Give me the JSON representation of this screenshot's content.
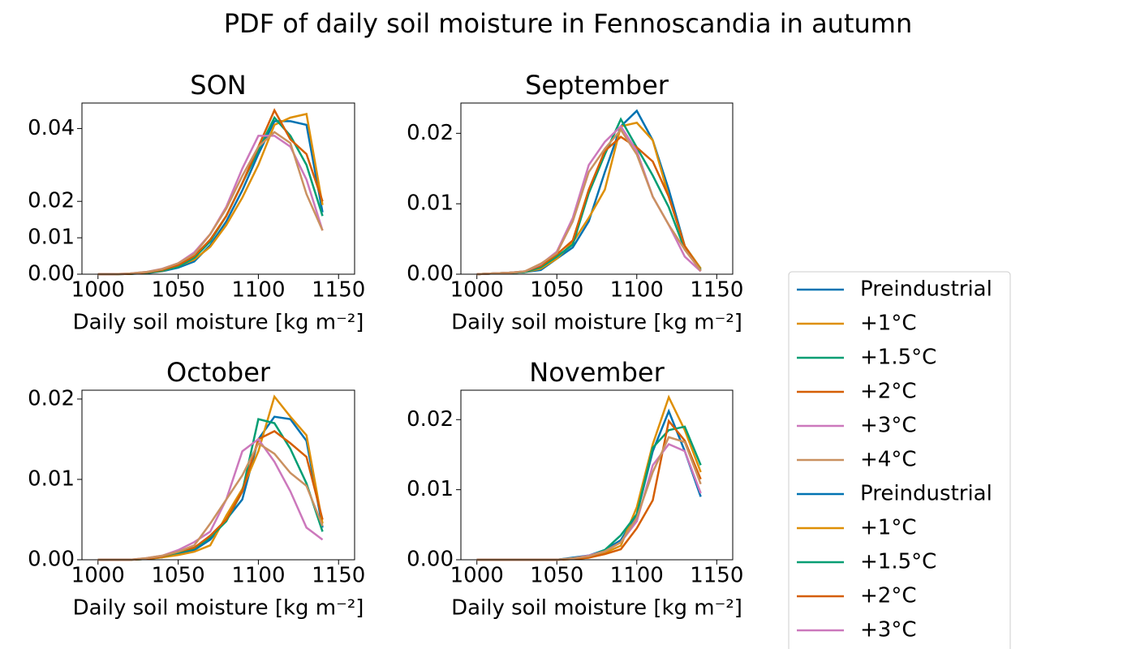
{
  "chart_data": {
    "type": "line",
    "title": "PDF of daily soil moisture in Fennoscandia in autumn",
    "legend": "right",
    "subplots": [
      {
        "title": "SON",
        "xlabel": "Daily soil moisture [kg m⁻²]",
        "x": [
          1000,
          1010,
          1020,
          1030,
          1040,
          1050,
          1060,
          1070,
          1080,
          1090,
          1100,
          1110,
          1120,
          1130,
          1140
        ],
        "xlim": [
          990,
          1160
        ],
        "xticks": [
          1000,
          1050,
          1100,
          1150
        ],
        "ylim": [
          0,
          0.047
        ],
        "yticks": [
          {
            "value": 0,
            "label": "0.00"
          },
          {
            "value": 0.01,
            "label": "0.01"
          },
          {
            "value": 0.02,
            "label": "0.02"
          },
          {
            "value": 0.04,
            "label": "0.04"
          }
        ],
        "series": [
          {
            "name": "Preindustrial",
            "color": "#0173b2",
            "values": [
              0,
              0,
              0.0001,
              0.0003,
              0.0008,
              0.0018,
              0.0035,
              0.008,
              0.0145,
              0.023,
              0.033,
              0.042,
              0.042,
              0.041,
              0.017
            ]
          },
          {
            "name": "+1°C",
            "color": "#de8f05",
            "values": [
              0,
              0,
              0.0001,
              0.0004,
              0.0009,
              0.0022,
              0.004,
              0.0075,
              0.0135,
              0.021,
              0.03,
              0.041,
              0.043,
              0.044,
              0.019
            ]
          },
          {
            "name": "+1.5°C",
            "color": "#029e73",
            "values": [
              0,
              0,
              0.0001,
              0.0004,
              0.001,
              0.002,
              0.0045,
              0.009,
              0.016,
              0.025,
              0.034,
              0.043,
              0.038,
              0.03,
              0.016
            ]
          },
          {
            "name": "+2°C",
            "color": "#d55e00",
            "values": [
              0,
              0,
              0.0001,
              0.0005,
              0.0012,
              0.0025,
              0.005,
              0.0095,
              0.016,
              0.025,
              0.035,
              0.045,
              0.037,
              0.033,
              0.02
            ]
          },
          {
            "name": "+3°C",
            "color": "#cc78bc",
            "values": [
              0,
              0,
              0.0002,
              0.0006,
              0.0015,
              0.003,
              0.006,
              0.011,
              0.0185,
              0.029,
              0.038,
              0.038,
              0.035,
              0.026,
              0.012
            ]
          },
          {
            "name": "+4°C",
            "color": "#ca9161",
            "values": [
              0,
              0,
              0.0002,
              0.0006,
              0.0014,
              0.003,
              0.0055,
              0.011,
              0.018,
              0.027,
              0.035,
              0.039,
              0.036,
              0.022,
              0.012
            ]
          }
        ]
      },
      {
        "title": "September",
        "xlabel": "Daily soil moisture [kg m⁻²]",
        "x": [
          1000,
          1010,
          1020,
          1030,
          1040,
          1050,
          1060,
          1070,
          1080,
          1090,
          1100,
          1110,
          1120,
          1130,
          1140
        ],
        "xlim": [
          990,
          1160
        ],
        "xticks": [
          1000,
          1050,
          1100,
          1150
        ],
        "ylim": [
          0,
          0.0243
        ],
        "yticks": [
          {
            "value": 0,
            "label": "0.00"
          },
          {
            "value": 0.01,
            "label": "0.01"
          },
          {
            "value": 0.02,
            "label": "0.02"
          }
        ],
        "series": [
          {
            "name": "Preindustrial",
            "color": "#0173b2",
            "values": [
              0,
              0.0001,
              0.0002,
              0.0003,
              0.0006,
              0.0022,
              0.0038,
              0.0075,
              0.0145,
              0.021,
              0.0232,
              0.019,
              0.012,
              0.004,
              0.0008
            ]
          },
          {
            "name": "+1°C",
            "color": "#de8f05",
            "values": [
              0,
              0.0001,
              0.0002,
              0.0003,
              0.0008,
              0.0022,
              0.0045,
              0.008,
              0.012,
              0.021,
              0.0215,
              0.019,
              0.011,
              0.004,
              0.0008
            ]
          },
          {
            "name": "+1.5°C",
            "color": "#029e73",
            "values": [
              0,
              0.0001,
              0.0002,
              0.0003,
              0.001,
              0.0025,
              0.0042,
              0.0115,
              0.017,
              0.022,
              0.018,
              0.014,
              0.0095,
              0.0035,
              0.0006
            ]
          },
          {
            "name": "+2°C",
            "color": "#d55e00",
            "values": [
              0,
              0.0001,
              0.0002,
              0.0004,
              0.0012,
              0.0028,
              0.0048,
              0.012,
              0.0175,
              0.0195,
              0.018,
              0.016,
              0.011,
              0.004,
              0.0005
            ]
          },
          {
            "name": "+3°C",
            "color": "#cc78bc",
            "values": [
              0,
              0.0001,
              0.0002,
              0.0004,
              0.0014,
              0.0032,
              0.008,
              0.0155,
              0.0188,
              0.021,
              0.0175,
              0.011,
              0.007,
              0.0025,
              0.0004
            ]
          },
          {
            "name": "+4°C",
            "color": "#ca9161",
            "values": [
              0,
              0.0001,
              0.0002,
              0.0004,
              0.0015,
              0.003,
              0.0075,
              0.0145,
              0.0178,
              0.0205,
              0.017,
              0.011,
              0.007,
              0.0035,
              0.0005
            ]
          }
        ]
      },
      {
        "title": "October",
        "xlabel": "Daily soil moisture [kg m⁻²]",
        "x": [
          1000,
          1010,
          1020,
          1030,
          1040,
          1050,
          1060,
          1070,
          1080,
          1090,
          1100,
          1110,
          1120,
          1130,
          1140
        ],
        "xlim": [
          990,
          1160
        ],
        "xticks": [
          1000,
          1050,
          1100,
          1150
        ],
        "ylim": [
          0,
          0.0211
        ],
        "yticks": [
          {
            "value": 0,
            "label": "0.00"
          },
          {
            "value": 0.01,
            "label": "0.01"
          },
          {
            "value": 0.02,
            "label": "0.02"
          }
        ],
        "series": [
          {
            "name": "Preindustrial",
            "color": "#0173b2",
            "values": [
              0,
              0,
              0,
              0.0001,
              0.0003,
              0.0008,
              0.0012,
              0.0025,
              0.005,
              0.0075,
              0.015,
              0.0178,
              0.0175,
              0.0148,
              0.004
            ]
          },
          {
            "name": "+1°C",
            "color": "#de8f05",
            "values": [
              0,
              0,
              0,
              0.0001,
              0.0003,
              0.0006,
              0.001,
              0.0018,
              0.0055,
              0.0088,
              0.0135,
              0.0203,
              0.0178,
              0.0155,
              0.0045
            ]
          },
          {
            "name": "+1.5°C",
            "color": "#029e73",
            "values": [
              0,
              0,
              0,
              0.0001,
              0.0004,
              0.0009,
              0.0014,
              0.0028,
              0.0048,
              0.0085,
              0.0175,
              0.017,
              0.0138,
              0.0095,
              0.0035
            ]
          },
          {
            "name": "+2°C",
            "color": "#d55e00",
            "values": [
              0,
              0,
              0,
              0.0001,
              0.0004,
              0.001,
              0.0015,
              0.003,
              0.005,
              0.0085,
              0.015,
              0.016,
              0.0145,
              0.0128,
              0.005
            ]
          },
          {
            "name": "+3°C",
            "color": "#cc78bc",
            "values": [
              0,
              0,
              0,
              0.0002,
              0.0005,
              0.0012,
              0.0022,
              0.0035,
              0.0075,
              0.0135,
              0.015,
              0.0122,
              0.0085,
              0.004,
              0.0025
            ]
          },
          {
            "name": "+4°C",
            "color": "#ca9161",
            "values": [
              0,
              0,
              0,
              0.0002,
              0.0005,
              0.001,
              0.0018,
              0.0045,
              0.0075,
              0.0105,
              0.0145,
              0.0132,
              0.0108,
              0.0092,
              0.0042
            ]
          }
        ]
      },
      {
        "title": "November",
        "xlabel": "Daily soil moisture [kg m⁻²]",
        "x": [
          1000,
          1010,
          1020,
          1030,
          1040,
          1050,
          1060,
          1070,
          1080,
          1090,
          1100,
          1110,
          1120,
          1130,
          1140
        ],
        "xlim": [
          990,
          1160
        ],
        "xticks": [
          1000,
          1050,
          1100,
          1150
        ],
        "ylim": [
          0,
          0.0242
        ],
        "yticks": [
          {
            "value": 0,
            "label": "0.00"
          },
          {
            "value": 0.01,
            "label": "0.01"
          },
          {
            "value": 0.02,
            "label": "0.02"
          }
        ],
        "series": [
          {
            "name": "Preindustrial",
            "color": "#0173b2",
            "values": [
              0,
              0,
              0,
              0,
              0,
              0,
              0.0003,
              0.0006,
              0.0014,
              0.0028,
              0.0065,
              0.0155,
              0.0212,
              0.0155,
              0.009
            ]
          },
          {
            "name": "+1°C",
            "color": "#de8f05",
            "values": [
              0,
              0,
              0,
              0,
              0,
              0,
              0.0001,
              0.0003,
              0.001,
              0.002,
              0.0075,
              0.0165,
              0.0232,
              0.0185,
              0.0125
            ]
          },
          {
            "name": "+1.5°C",
            "color": "#029e73",
            "values": [
              0,
              0,
              0,
              0,
              0,
              0,
              0.0002,
              0.0005,
              0.0014,
              0.0035,
              0.0065,
              0.016,
              0.0185,
              0.019,
              0.0135
            ]
          },
          {
            "name": "+2°C",
            "color": "#d55e00",
            "values": [
              0,
              0,
              0,
              0,
              0,
              0,
              0.0001,
              0.0003,
              0.0008,
              0.0015,
              0.0045,
              0.0085,
              0.0198,
              0.017,
              0.0115
            ]
          },
          {
            "name": "+3°C",
            "color": "#cc78bc",
            "values": [
              0,
              0,
              0,
              0,
              0,
              0,
              0.0002,
              0.0006,
              0.0012,
              0.0025,
              0.0055,
              0.0135,
              0.0165,
              0.0155,
              0.0095
            ]
          },
          {
            "name": "+4°C",
            "color": "#ca9161",
            "values": [
              0,
              0,
              0,
              0,
              0,
              0,
              0.0002,
              0.0005,
              0.0012,
              0.0025,
              0.006,
              0.0125,
              0.0175,
              0.0168,
              0.0108
            ]
          }
        ]
      }
    ]
  }
}
